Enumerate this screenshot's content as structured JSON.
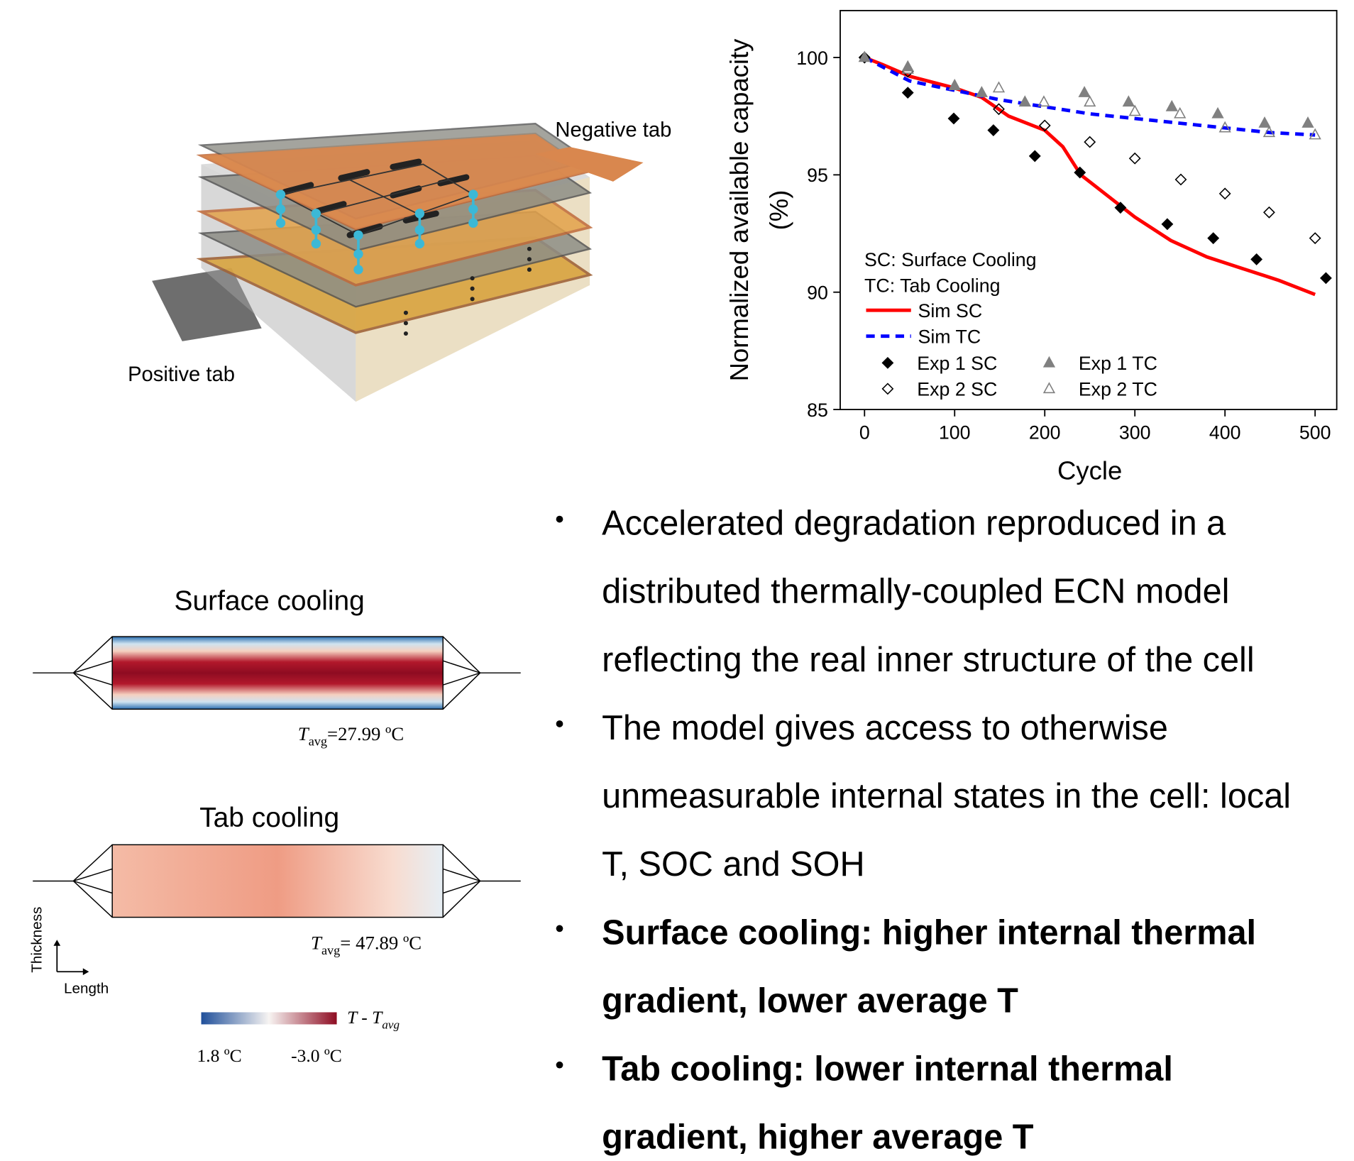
{
  "chart_data": {
    "type": "scatter",
    "xlabel": "Cycle",
    "ylabel": "Normalized available capacity",
    "ylabel_unit": "(%)",
    "xlim": [
      -27,
      524
    ],
    "ylim": [
      85,
      102
    ],
    "xticks": [
      0,
      100,
      200,
      300,
      400,
      500
    ],
    "yticks": [
      85,
      90,
      95,
      100
    ],
    "annotations": [
      "SC: Surface Cooling",
      "TC: Tab Cooling"
    ],
    "series": [
      {
        "name": "Sim SC",
        "type": "line",
        "color": "#ff0000",
        "dash": "solid",
        "x": [
          0,
          20,
          50,
          100,
          130,
          160,
          200,
          220,
          240,
          270,
          300,
          340,
          380,
          420,
          460,
          500
        ],
        "values": [
          100,
          99.7,
          99.2,
          98.7,
          98.3,
          97.5,
          96.9,
          96.2,
          95.0,
          94.1,
          93.2,
          92.2,
          91.5,
          91.0,
          90.5,
          89.9
        ]
      },
      {
        "name": "Sim TC",
        "type": "line",
        "color": "#0000ff",
        "dash": "dashed",
        "x": [
          0,
          50,
          100,
          150,
          200,
          250,
          300,
          350,
          400,
          450,
          500
        ],
        "values": [
          100,
          99.0,
          98.6,
          98.2,
          97.9,
          97.6,
          97.4,
          97.2,
          97.0,
          96.8,
          96.7
        ]
      },
      {
        "name": "Exp 1 SC",
        "type": "scatter",
        "marker": "diamond",
        "filled": true,
        "color": "#000000",
        "x": [
          0,
          48,
          99,
          143,
          189,
          239,
          284,
          336,
          387,
          435,
          512
        ],
        "values": [
          100,
          98.5,
          97.4,
          96.9,
          95.8,
          95.1,
          93.6,
          92.9,
          92.3,
          91.4,
          90.6
        ]
      },
      {
        "name": "Exp 2 SC",
        "type": "scatter",
        "marker": "diamond",
        "filled": false,
        "color": "#000000",
        "x": [
          0,
          48,
          149,
          200,
          250,
          300,
          351,
          400,
          449,
          500
        ],
        "values": [
          100,
          99.4,
          97.8,
          97.1,
          96.4,
          95.7,
          94.8,
          94.2,
          93.4,
          92.3
        ]
      },
      {
        "name": "Exp 1 TC",
        "type": "scatter",
        "marker": "triangle",
        "filled": true,
        "color": "#808080",
        "x": [
          0,
          48,
          100,
          130,
          178,
          244,
          293,
          341,
          392,
          444,
          492
        ],
        "values": [
          100,
          99.6,
          98.8,
          98.5,
          98.1,
          98.5,
          98.1,
          97.9,
          97.6,
          97.2,
          97.2
        ]
      },
      {
        "name": "Exp 2 TC",
        "type": "scatter",
        "marker": "triangle",
        "filled": false,
        "color": "#808080",
        "x": [
          48,
          100,
          149,
          199,
          250,
          300,
          350,
          400,
          449,
          500
        ],
        "values": [
          99.5,
          98.8,
          98.7,
          98.1,
          98.1,
          97.7,
          97.6,
          97.0,
          96.8,
          96.7
        ]
      }
    ]
  },
  "diagram": {
    "negative_tab": "Negative tab",
    "positive_tab": "Positive tab"
  },
  "heatmaps": [
    {
      "title": "Surface cooling",
      "symbol": "T",
      "subscript": "avg",
      "value": "=27.99 ºC"
    },
    {
      "title": "Tab cooling",
      "symbol": "T",
      "subscript": "avg",
      "value": "= 47.89 ºC"
    }
  ],
  "axes_legend": {
    "vertical": "Thickness",
    "horizontal": "Length"
  },
  "colorbar": {
    "label_symbol": "T - T",
    "label_subscript": "avg",
    "min_label": "1.8 ºC",
    "max_label": "-3.0 ºC"
  },
  "bullets": [
    {
      "bold": false,
      "lines": [
        "Accelerated degradation reproduced in a",
        "distributed thermally-coupled ECN model",
        "reflecting the real inner structure of the cell"
      ]
    },
    {
      "bold": false,
      "lines": [
        "The model gives access to otherwise",
        "unmeasurable internal states in the cell: local",
        "T, SOC and SOH"
      ]
    },
    {
      "bold": true,
      "lines": [
        "Surface cooling: higher internal thermal",
        "gradient, lower average T"
      ]
    },
    {
      "bold": true,
      "lines": [
        "Tab cooling: lower internal thermal",
        "gradient, higher average T"
      ]
    }
  ]
}
